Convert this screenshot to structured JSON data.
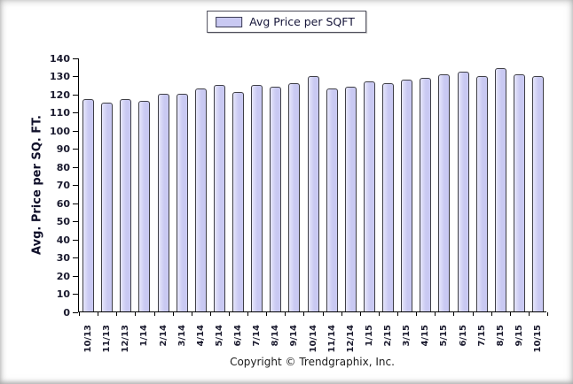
{
  "legend": {
    "label": "Avg Price per SQFT",
    "swatch_color": "#c9c9f2"
  },
  "footer": {
    "copyright": "Copyright © Trendgraphix, Inc."
  },
  "colors": {
    "bar_fill": "#c9c9f2",
    "bar_fill_light": "#e6e6fb",
    "bar_border": "#3f3f46",
    "axis": "#000000",
    "text": "#1a1a2e"
  },
  "chart_data": {
    "type": "bar",
    "title": "",
    "xlabel": "",
    "ylabel": "Avg. Price per SQ. FT.",
    "ylim": [
      0,
      140
    ],
    "ytick_step": 10,
    "grid": false,
    "legend_position": "top-center",
    "categories": [
      "10/13",
      "11/13",
      "12/13",
      "1/14",
      "2/14",
      "3/14",
      "4/14",
      "5/14",
      "6/14",
      "7/14",
      "8/14",
      "9/14",
      "10/14",
      "11/14",
      "12/14",
      "1/15",
      "2/15",
      "3/15",
      "4/15",
      "5/15",
      "6/15",
      "7/15",
      "8/15",
      "9/15",
      "10/15"
    ],
    "series": [
      {
        "name": "Avg Price per SQFT",
        "values": [
          117,
          115,
          117,
          116,
          120,
          120,
          123,
          125,
          121,
          125,
          124,
          126,
          130,
          123,
          124,
          127,
          126,
          128,
          129,
          131,
          132,
          130,
          134,
          131,
          130
        ]
      }
    ]
  }
}
